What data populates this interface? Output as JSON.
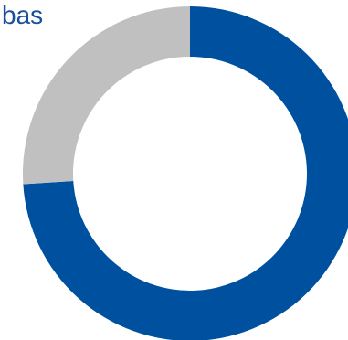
{
  "chart_data": {
    "type": "pie",
    "variant": "donut",
    "title": "",
    "label": "bas",
    "slices": [
      {
        "value": 74,
        "color": "#0050a0"
      },
      {
        "value": 26,
        "color": "#c0c0c0"
      }
    ],
    "start_angle_deg": 0,
    "direction": "clockwise",
    "legend": "none"
  }
}
